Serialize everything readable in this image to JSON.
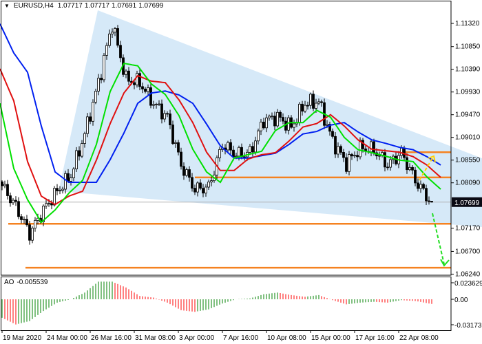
{
  "header": {
    "symbol": "EURUSD,H4",
    "open": "1.07717",
    "high": "1.07717",
    "low": "1.07691",
    "close": "1.07699",
    "menu_icon": "triangle-down-icon"
  },
  "ao_panel": {
    "name": "AO",
    "value": "-0.005539",
    "axis_labels": [
      "0.023629",
      "0.00",
      "-0.031732"
    ]
  },
  "current_price_label": "1.07699",
  "colors": {
    "bull": "#ffffff",
    "bear": "#000000",
    "ma_fast": "#00e000",
    "ma_mid": "#e01010",
    "ma_slow": "#0020f0",
    "levels": "#f58220",
    "wedge": "#d6e9f8",
    "ao_up": "#008000",
    "ao_down": "#ff0000",
    "arrow_up": "#ffd000",
    "arrow_down": "#22dd22"
  },
  "chart_data": {
    "type": "candlestick",
    "timeframe": "H4",
    "price_ticks": [
      "1.11320",
      "1.10850",
      "1.10390",
      "1.09930",
      "1.09470",
      "1.09010",
      "1.08550",
      "1.08090",
      "1.07170",
      "1.06700",
      "1.06240"
    ],
    "time_ticks": [
      "19 Mar 2020",
      "24 Mar 00:00",
      "26 Mar 16:00",
      "31 Mar 08:00",
      "3 Apr 00:00",
      "7 Apr 16:00",
      "10 Apr 08:00",
      "15 Apr 00:00",
      "17 Apr 16:00",
      "22 Apr 08:00"
    ],
    "close_path": [
      1.0803,
      1.0761,
      1.0706,
      1.0754,
      1.0792,
      1.0824,
      1.0908,
      1.1012,
      1.1131,
      1.1019,
      1.1012,
      1.097,
      1.0942,
      1.0845,
      1.0796,
      1.08,
      1.0887,
      1.0866,
      1.087,
      1.0936,
      1.0942,
      1.0922,
      1.097,
      1.0973,
      1.0894,
      1.0848,
      1.088,
      1.0876,
      1.0845,
      1.087,
      1.0814,
      1.0775
    ],
    "last_bar": {
      "open": 1.07717,
      "high": 1.07717,
      "low": 1.07691,
      "close": 1.07699
    },
    "ma_fast": [
      1.097,
      1.0838,
      1.0775,
      1.0729,
      1.0754,
      1.0788,
      1.0814,
      1.0887,
      1.0994,
      1.1051,
      1.1046,
      1.1009,
      1.0988,
      1.0945,
      1.0877,
      1.0831,
      1.081,
      1.0859,
      1.0866,
      1.0873,
      1.0915,
      1.0931,
      1.0931,
      1.0956,
      1.0942,
      1.0901,
      1.0876,
      1.087,
      1.0863,
      1.0855,
      1.0852,
      1.0821,
      1.0796
    ],
    "ma_mid": [
      1.104,
      1.0975,
      1.0852,
      1.0782,
      1.0765,
      1.0782,
      1.0792,
      1.0855,
      1.0929,
      1.0991,
      1.1026,
      1.1015,
      1.1012,
      1.0977,
      1.0931,
      1.0871,
      1.0834,
      1.0834,
      1.0857,
      1.0866,
      1.087,
      1.0894,
      1.0922,
      1.0929,
      1.0947,
      1.0924,
      1.0896,
      1.0877,
      1.0874,
      1.0871,
      1.0862,
      1.0845,
      1.082
    ],
    "ma_slow": [
      1.1131,
      1.1072,
      1.1033,
      1.0924,
      1.0831,
      1.081,
      1.081,
      1.081,
      1.0856,
      1.091,
      1.097,
      1.0991,
      1.0995,
      1.0987,
      1.097,
      1.0928,
      1.0884,
      1.0859,
      1.0859,
      1.0864,
      1.0869,
      1.0887,
      1.0908,
      1.0913,
      1.0926,
      1.0931,
      1.0912,
      1.0896,
      1.0889,
      1.0881,
      1.0876,
      1.0862,
      1.0845
    ],
    "levels": [
      1.0871,
      1.082,
      1.0726,
      1.0637
    ],
    "ao_path": [
      -0.022,
      -0.03,
      -0.026,
      -0.014,
      -0.004,
      0.0,
      0.008,
      0.021,
      0.021,
      0.014,
      0.004,
      0.002,
      -0.004,
      -0.013,
      -0.015,
      -0.012,
      -0.005,
      0.0,
      0.001,
      0.006,
      0.008,
      0.005,
      0.003,
      0.005,
      -0.001,
      -0.006,
      -0.004,
      -0.003,
      -0.004,
      -0.001,
      -0.002,
      -0.005
    ],
    "ao_last": -0.005539,
    "ylim": [
      1.0624,
      1.1132
    ]
  }
}
